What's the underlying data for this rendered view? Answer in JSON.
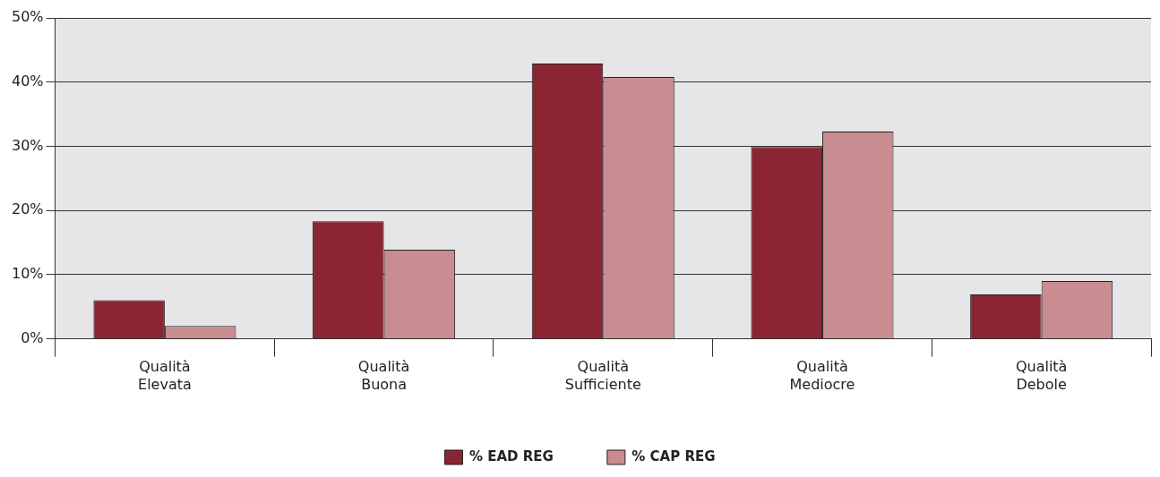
{
  "chart_data": {
    "type": "bar",
    "categories": [
      "Qualità\nElevata",
      "Qualità\nBuona",
      "Qualità\nSufficiente",
      "Qualità\nMediocre",
      "Qualità\nDebole"
    ],
    "series": [
      {
        "name": "% EAD REG",
        "color": "#8b2433",
        "values": [
          6,
          18.3,
          42.9,
          29.9,
          6.9
        ]
      },
      {
        "name": "% CAP REG",
        "color": "#c98c90",
        "values": [
          2,
          13.9,
          40.8,
          32.3,
          9
        ]
      }
    ],
    "ylim": [
      0,
      50
    ],
    "yticks": [
      {
        "value": 0,
        "label": "0%"
      },
      {
        "value": 10,
        "label": "10%"
      },
      {
        "value": 20,
        "label": "20%"
      },
      {
        "value": 30,
        "label": "30%"
      },
      {
        "value": 40,
        "label": "40%"
      },
      {
        "value": 50,
        "label": "50%"
      }
    ],
    "grid": "y",
    "legend": "bottom"
  }
}
